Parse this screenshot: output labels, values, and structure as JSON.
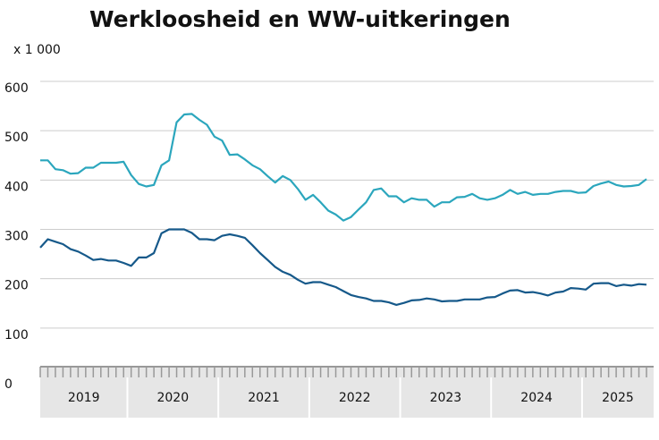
{
  "chart_data": {
    "type": "line",
    "title": "Werkloosheid en WW-uitkeringen",
    "y_unit": "x 1 000",
    "categories": [
      "2019",
      null,
      null,
      null,
      null,
      null,
      null,
      null,
      null,
      null,
      null,
      null,
      "2020",
      null,
      null,
      null,
      null,
      null,
      null,
      null,
      null,
      null,
      null,
      null,
      "2021",
      null,
      null,
      null,
      null,
      null,
      null,
      null,
      null,
      null,
      null,
      null,
      "2022",
      null,
      null,
      null,
      null,
      null,
      null,
      null,
      null,
      null,
      null,
      null,
      "2023",
      null,
      null,
      null,
      null,
      null,
      null,
      null,
      null,
      null,
      null,
      null,
      "2024",
      null,
      null,
      null,
      null,
      null,
      null,
      null,
      null,
      null,
      null,
      null,
      "2025",
      null,
      null,
      null,
      null,
      null,
      null,
      null,
      null
    ],
    "series": [
      {
        "color": "#2ba6bd",
        "values": [
          440,
          440,
          422,
          420,
          413,
          414,
          425,
          425,
          435,
          435,
          435,
          437,
          410,
          392,
          387,
          390,
          430,
          440,
          517,
          533,
          534,
          522,
          512,
          488,
          480,
          451,
          452,
          442,
          430,
          422,
          408,
          395,
          408,
          400,
          382,
          360,
          370,
          355,
          338,
          330,
          318,
          325,
          340,
          355,
          380,
          383,
          367,
          367,
          355,
          363,
          360,
          360,
          346,
          355,
          355,
          365,
          366,
          372,
          363,
          360,
          363,
          370,
          380,
          372,
          376,
          370,
          372,
          372,
          376,
          378,
          378,
          374,
          375,
          388,
          393,
          397,
          390,
          387,
          388,
          390,
          402
        ]
      },
      {
        "color": "#16598a",
        "values": [
          263,
          280,
          275,
          270,
          260,
          255,
          247,
          238,
          240,
          237,
          237,
          232,
          226,
          243,
          243,
          252,
          292,
          300,
          300,
          300,
          293,
          280,
          280,
          278,
          287,
          290,
          287,
          283,
          268,
          252,
          238,
          224,
          214,
          208,
          198,
          190,
          193,
          193,
          188,
          183,
          175,
          167,
          163,
          160,
          155,
          155,
          152,
          147,
          151,
          156,
          157,
          160,
          158,
          154,
          155,
          155,
          158,
          158,
          158,
          162,
          163,
          170,
          176,
          177,
          172,
          173,
          170,
          166,
          172,
          174,
          181,
          180,
          178,
          190,
          191,
          191,
          185,
          188,
          186,
          189,
          188
        ]
      }
    ],
    "ylim": [
      0,
      600
    ],
    "yticks": [
      0,
      100,
      200,
      300,
      400,
      500,
      600
    ],
    "grid": true
  }
}
